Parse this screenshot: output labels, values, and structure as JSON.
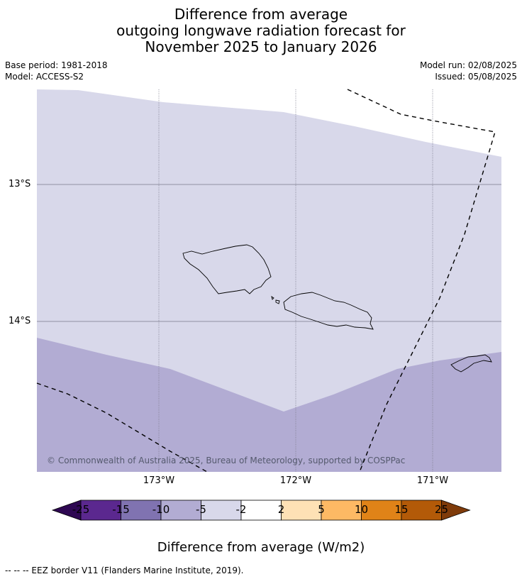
{
  "title": {
    "line1": "Difference from average",
    "line2": "outgoing longwave radiation forecast for",
    "line3": "November 2025 to January 2026"
  },
  "meta_left": {
    "base_period": "Base period: 1981-2018",
    "model": "Model: ACCESS-S2"
  },
  "meta_right": {
    "model_run": "Model run: 02/08/2025",
    "issued": "Issued: 05/08/2025"
  },
  "map": {
    "lat_labels": [
      "13°S",
      "14°S"
    ],
    "lon_labels": [
      "173°W",
      "172°W",
      "171°W"
    ],
    "copyright": "© Commonwealth of Australia 2025, Bureau of Meteorology, supported by COSPPac",
    "region_colors": {
      "minus5_to_minus2": "#d8d8ea",
      "minus10_to_minus5": "#b2acd3"
    }
  },
  "colorbar": {
    "title": "Difference from average (W/m2)",
    "ticks": [
      "-25",
      "-15",
      "-10",
      "-5",
      "-2",
      "2",
      "5",
      "10",
      "15",
      "25"
    ],
    "colors": [
      "#2e0852",
      "#5b288f",
      "#8073b1",
      "#b2acd3",
      "#d8d8ea",
      "#ffffff",
      "#fee1b5",
      "#fdb964",
      "#e08318",
      "#b35a08",
      "#7f3b0a"
    ]
  },
  "footnote": "--  --  -- EEZ border V11 (Flanders Marine Institute, 2019)."
}
